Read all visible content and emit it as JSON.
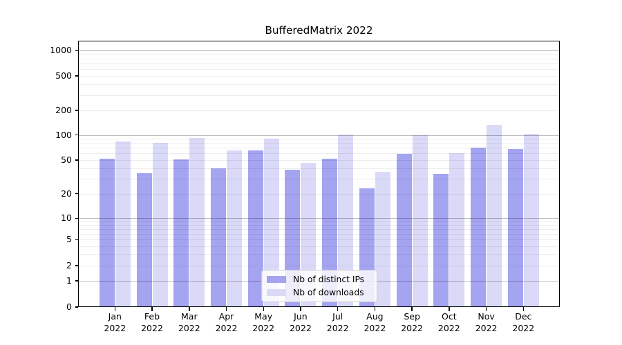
{
  "title": "BufferedMatrix 2022",
  "chart_data": {
    "type": "bar",
    "title": "BufferedMatrix 2022",
    "categories": [
      "Jan 2022",
      "Feb 2022",
      "Mar 2022",
      "Apr 2022",
      "May 2022",
      "Jun 2022",
      "Jul 2022",
      "Aug 2022",
      "Sep 2022",
      "Oct 2022",
      "Nov 2022",
      "Dec 2022"
    ],
    "series": [
      {
        "name": "Nb of distinct IPs",
        "color": "#a4a4f1",
        "values": [
          52,
          35,
          51,
          40,
          65,
          38,
          52,
          23,
          59,
          34,
          70,
          68
        ]
      },
      {
        "name": "Nb of downloads",
        "color": "#dadaf8",
        "values": [
          84,
          80,
          93,
          65,
          90,
          46,
          101,
          36,
          99,
          60,
          133,
          104
        ]
      }
    ],
    "xlabel": "",
    "ylabel": "",
    "yscale": "log-like",
    "yticks": [
      0,
      1,
      2,
      5,
      10,
      20,
      50,
      100,
      200,
      500,
      1000
    ],
    "ylim": [
      0,
      1300
    ],
    "grid": true,
    "legend_position": "lower center"
  }
}
